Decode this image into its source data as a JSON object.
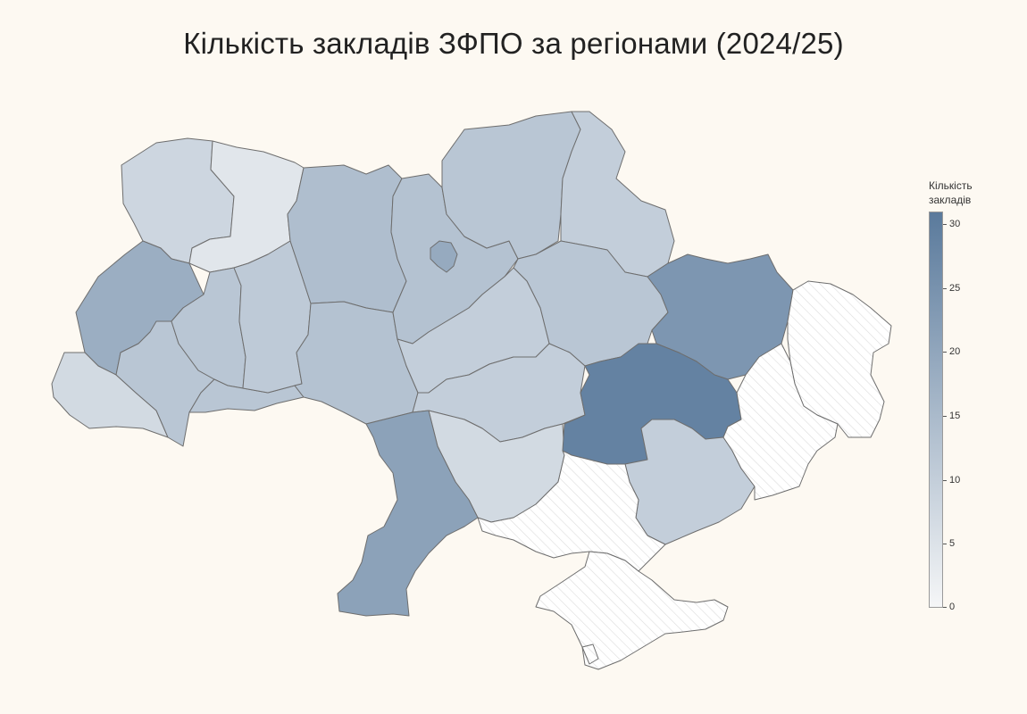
{
  "title": "Кількість закладів ЗФПО за регіонами (2024/25)",
  "legend": {
    "title_line1": "Кількість",
    "title_line2": "закладів",
    "ticks": [
      "30",
      "25",
      "20",
      "15",
      "10",
      "5",
      "0"
    ],
    "min": 0,
    "max": 31,
    "color_low": "#f5f6f7",
    "color_high": "#5a7a9c"
  },
  "no_data_fill": "hatched",
  "regions": [
    {
      "name": "Volyn",
      "value": 8
    },
    {
      "name": "Rivne",
      "value": 4
    },
    {
      "name": "Lviv",
      "value": 18
    },
    {
      "name": "Zakarpattia",
      "value": 7
    },
    {
      "name": "Ivano-Frankivsk",
      "value": 12
    },
    {
      "name": "Ternopil",
      "value": 12
    },
    {
      "name": "Chernivtsi",
      "value": 12
    },
    {
      "name": "Khmelnytskyi",
      "value": 11
    },
    {
      "name": "Zhytomyr",
      "value": 14
    },
    {
      "name": "Vinnytsia",
      "value": 13
    },
    {
      "name": "Kyiv Oblast",
      "value": 13
    },
    {
      "name": "Kyiv City",
      "value": 19
    },
    {
      "name": "Chernihiv",
      "value": 12
    },
    {
      "name": "Sumy",
      "value": 10
    },
    {
      "name": "Poltava",
      "value": 12
    },
    {
      "name": "Cherkasy",
      "value": 10
    },
    {
      "name": "Kirovohrad",
      "value": 10
    },
    {
      "name": "Mykolaiv",
      "value": 7
    },
    {
      "name": "Odesa",
      "value": 21
    },
    {
      "name": "Kharkiv",
      "value": 24
    },
    {
      "name": "Dnipropetrovsk",
      "value": 29
    },
    {
      "name": "Zaporizhzhia",
      "value": 10
    },
    {
      "name": "Donetsk",
      "value": null
    },
    {
      "name": "Luhansk",
      "value": null
    },
    {
      "name": "Kherson",
      "value": null
    },
    {
      "name": "Crimea",
      "value": null
    },
    {
      "name": "Sevastopol",
      "value": null
    }
  ]
}
